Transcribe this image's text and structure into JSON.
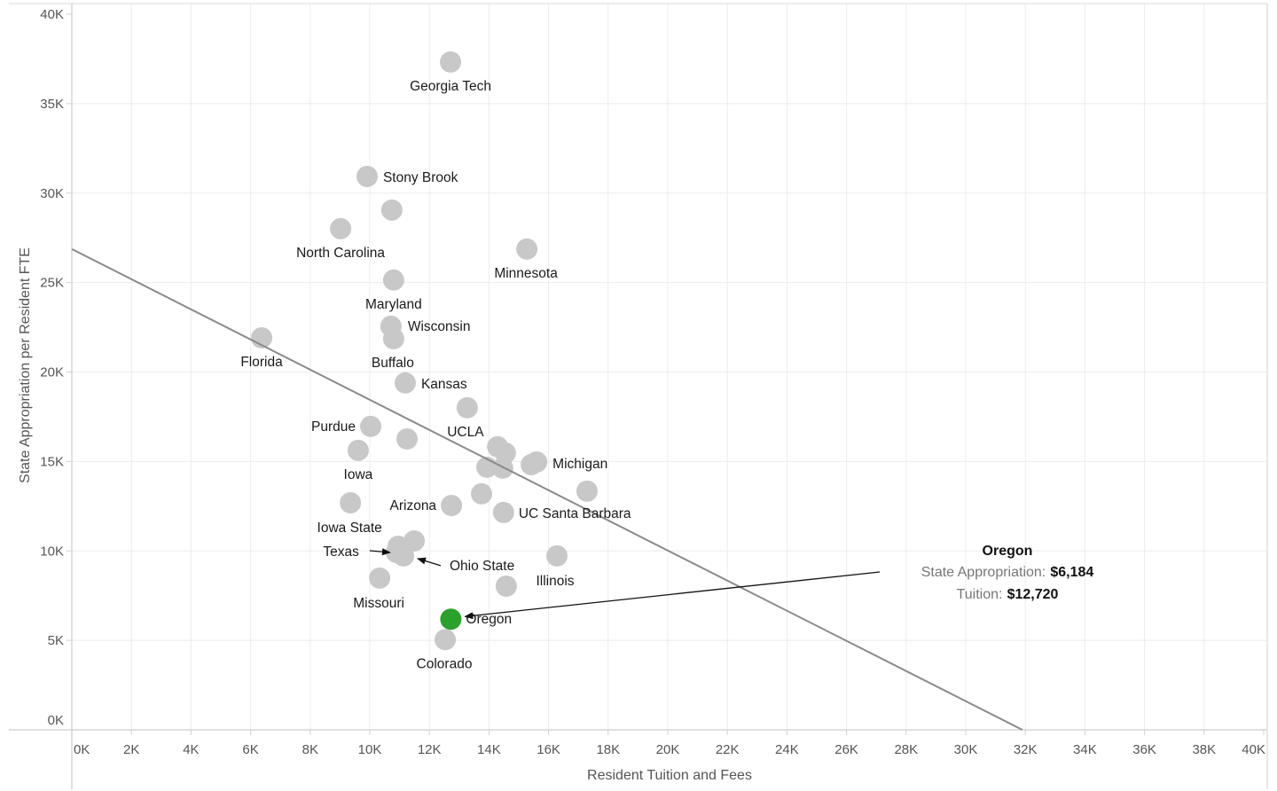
{
  "chart_data": {
    "type": "scatter",
    "title": "",
    "xlabel": "Resident Tuition and Fees",
    "ylabel": "State Appropriation per Resident FTE",
    "xlim": [
      0,
      40000
    ],
    "ylim": [
      0,
      40000
    ],
    "grid": true,
    "x_ticks": [
      "0K",
      "2K",
      "4K",
      "6K",
      "8K",
      "10K",
      "12K",
      "14K",
      "16K",
      "18K",
      "20K",
      "22K",
      "24K",
      "26K",
      "28K",
      "30K",
      "32K",
      "34K",
      "36K",
      "38K",
      "40K"
    ],
    "y_ticks": [
      "0K",
      "5K",
      "10K",
      "15K",
      "20K",
      "25K",
      "30K",
      "35K",
      "40K"
    ],
    "colors": {
      "default": "#c8c8c8",
      "highlight": "#2ca02c",
      "trend": "#8a8a8a",
      "grid": "#ececec"
    },
    "trend_line": {
      "x": [
        0,
        31900
      ],
      "y": [
        26870,
        0
      ]
    },
    "points": [
      {
        "name": "Georgia Tech",
        "x": 12710,
        "y": 37330,
        "label": "Georgia Tech"
      },
      {
        "name": "Stony Brook",
        "x": 9910,
        "y": 30930,
        "label": "Stony Brook"
      },
      {
        "name": "",
        "x": 10740,
        "y": 29050,
        "label": ""
      },
      {
        "name": "North Carolina",
        "x": 9020,
        "y": 28010,
        "label": "North Carolina"
      },
      {
        "name": "Minnesota",
        "x": 15270,
        "y": 26870,
        "label": "Minnesota"
      },
      {
        "name": "Maryland",
        "x": 10800,
        "y": 25140,
        "label": "Maryland"
      },
      {
        "name": "Wisconsin",
        "x": 10710,
        "y": 22560,
        "label": "Wisconsin"
      },
      {
        "name": "Buffalo",
        "x": 10800,
        "y": 21860,
        "label": "Buffalo"
      },
      {
        "name": "Florida",
        "x": 6370,
        "y": 21910,
        "label": "Florida"
      },
      {
        "name": "Kansas",
        "x": 11190,
        "y": 19390,
        "label": "Kansas"
      },
      {
        "name": "UCLA",
        "x": 13270,
        "y": 18000,
        "label": "UCLA"
      },
      {
        "name": "Purdue",
        "x": 10030,
        "y": 16960,
        "label": "Purdue"
      },
      {
        "name": "",
        "x": 11250,
        "y": 16260,
        "label": ""
      },
      {
        "name": "Iowa",
        "x": 9610,
        "y": 15620,
        "label": "Iowa"
      },
      {
        "name": "",
        "x": 14290,
        "y": 15820,
        "label": ""
      },
      {
        "name": "",
        "x": 14550,
        "y": 15470,
        "label": ""
      },
      {
        "name": "",
        "x": 13930,
        "y": 14680,
        "label": ""
      },
      {
        "name": "",
        "x": 14460,
        "y": 14630,
        "label": ""
      },
      {
        "name": "",
        "x": 15420,
        "y": 14820,
        "label": ""
      },
      {
        "name": "Michigan",
        "x": 15600,
        "y": 14970,
        "label": "Michigan"
      },
      {
        "name": "",
        "x": 17290,
        "y": 13340,
        "label": ""
      },
      {
        "name": "",
        "x": 13750,
        "y": 13190,
        "label": ""
      },
      {
        "name": "Arizona",
        "x": 12740,
        "y": 12540,
        "label": "Arizona"
      },
      {
        "name": "UC Santa Barbara",
        "x": 14490,
        "y": 12150,
        "label": "UC Santa Barbara"
      },
      {
        "name": "Iowa State",
        "x": 9350,
        "y": 12690,
        "label": "Iowa State"
      },
      {
        "name": "",
        "x": 11490,
        "y": 10560,
        "label": ""
      },
      {
        "name": "Texas",
        "x": 10950,
        "y": 10260,
        "label": "Texas"
      },
      {
        "name": "",
        "x": 10890,
        "y": 9920,
        "label": ""
      },
      {
        "name": "Ohio State",
        "x": 11130,
        "y": 9720,
        "label": "Ohio State"
      },
      {
        "name": "Illinois",
        "x": 16280,
        "y": 9720,
        "label": "Illinois"
      },
      {
        "name": "Missouri",
        "x": 10330,
        "y": 8480,
        "label": "Missouri"
      },
      {
        "name": "",
        "x": 14580,
        "y": 8030,
        "label": ""
      },
      {
        "name": "Oregon",
        "x": 12720,
        "y": 6184,
        "label": "Oregon",
        "highlight": true
      },
      {
        "name": "Colorado",
        "x": 12530,
        "y": 5040,
        "label": "Colorado"
      }
    ],
    "annotation": {
      "target": "Oregon",
      "title": "Oregon",
      "line1_key": "State Appropriation:",
      "line1_value": "$6,184",
      "line2_key": "Tuition:",
      "line2_value": "$12,720"
    }
  }
}
